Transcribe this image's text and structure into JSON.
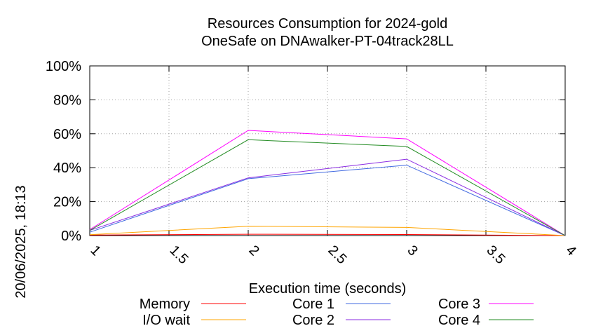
{
  "chart_data": {
    "type": "line",
    "title": "Resources Consumption for 2024-gold",
    "subtitle": "OneSafe on DNAwalker-PT-04track28LL",
    "xlabel": "Execution time (seconds)",
    "ylabel": "",
    "timestamp": "20/06/2025, 18:13",
    "xlim": [
      1,
      4
    ],
    "ylim": [
      0,
      100
    ],
    "x_ticks": [
      "1",
      "1.5",
      "2",
      "2.5",
      "3",
      "3.5",
      "4"
    ],
    "x_tick_values": [
      1,
      1.5,
      2,
      2.5,
      3,
      3.5,
      4
    ],
    "y_ticks": [
      "0%",
      "20%",
      "40%",
      "60%",
      "80%",
      "100%"
    ],
    "y_tick_values": [
      0,
      20,
      40,
      60,
      80,
      100
    ],
    "grid": true,
    "legend_position": "bottom",
    "x": [
      1,
      2,
      3,
      4
    ],
    "series": [
      {
        "name": "Memory",
        "color": "#ff0000",
        "values": [
          0.3,
          0.8,
          0.6,
          0
        ]
      },
      {
        "name": "I/O wait",
        "color": "#ffa500",
        "values": [
          0.5,
          5.5,
          4.8,
          0
        ]
      },
      {
        "name": "Core 1",
        "color": "#4169e1",
        "values": [
          2,
          33.5,
          41.5,
          0
        ]
      },
      {
        "name": "Core 2",
        "color": "#8a2be2",
        "values": [
          3,
          34,
          45,
          0
        ]
      },
      {
        "name": "Core 3",
        "color": "#ff00ff",
        "values": [
          3.5,
          62,
          57,
          0
        ]
      },
      {
        "name": "Core 4",
        "color": "#228b22",
        "values": [
          3,
          56.5,
          52.5,
          0
        ]
      }
    ]
  }
}
